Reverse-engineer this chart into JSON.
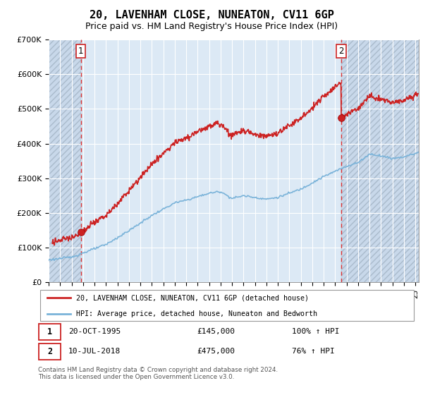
{
  "title": "20, LAVENHAM CLOSE, NUNEATON, CV11 6GP",
  "subtitle": "Price paid vs. HM Land Registry's House Price Index (HPI)",
  "hpi_label": "HPI: Average price, detached house, Nuneaton and Bedworth",
  "property_label": "20, LAVENHAM CLOSE, NUNEATON, CV11 6GP (detached house)",
  "transaction1_date": "20-OCT-1995",
  "transaction1_price": 145000,
  "transaction1_note": "100% ↑ HPI",
  "transaction1_year": 1995.8,
  "transaction2_date": "10-JUL-2018",
  "transaction2_price": 475000,
  "transaction2_note": "76% ↑ HPI",
  "transaction2_year": 2018.53,
  "hpi_color": "#7ab3d9",
  "property_color": "#cc2222",
  "dashed_line_color": "#dd3333",
  "plot_bg_color": "#dce9f5",
  "hatch_bg_color": "#c8d8ea",
  "ylim": [
    0,
    700000
  ],
  "yticks": [
    0,
    100000,
    200000,
    300000,
    400000,
    500000,
    600000,
    700000
  ],
  "ytick_labels": [
    "£0",
    "£100K",
    "£200K",
    "£300K",
    "£400K",
    "£500K",
    "£600K",
    "£700K"
  ],
  "xmin": 1993,
  "xmax": 2025.3,
  "footer": "Contains HM Land Registry data © Crown copyright and database right 2024.\nThis data is licensed under the Open Government Licence v3.0.",
  "title_fontsize": 11,
  "subtitle_fontsize": 9
}
